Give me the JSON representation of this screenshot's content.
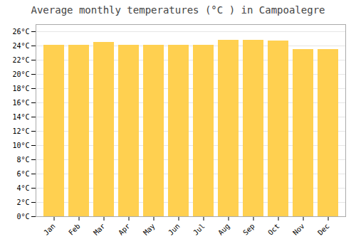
{
  "chart_data": {
    "type": "bar",
    "title": "Average monthly temperatures (°C ) in Campoalegre",
    "categories": [
      "Jan",
      "Feb",
      "Mar",
      "Apr",
      "May",
      "Jun",
      "Jul",
      "Aug",
      "Sep",
      "Oct",
      "Nov",
      "Dec"
    ],
    "values": [
      24.1,
      24.1,
      24.5,
      24.1,
      24.1,
      24.1,
      24.1,
      24.8,
      24.8,
      24.7,
      23.5,
      23.5
    ],
    "color": "#FFD050",
    "ylim": [
      0,
      27
    ],
    "yticks": [
      {
        "value": 0,
        "label": "0°C"
      },
      {
        "value": 2,
        "label": "2°C"
      },
      {
        "value": 4,
        "label": "4°C"
      },
      {
        "value": 6,
        "label": "6°C"
      },
      {
        "value": 8,
        "label": "8°C"
      },
      {
        "value": 10,
        "label": "10°C"
      },
      {
        "value": 12,
        "label": "12°C"
      },
      {
        "value": 14,
        "label": "14°C"
      },
      {
        "value": 16,
        "label": "16°C"
      },
      {
        "value": 18,
        "label": "18°C"
      },
      {
        "value": 20,
        "label": "20°C"
      },
      {
        "value": 22,
        "label": "22°C"
      },
      {
        "value": 24,
        "label": "24°C"
      },
      {
        "value": 26,
        "label": "26°C"
      }
    ],
    "grid": true
  }
}
